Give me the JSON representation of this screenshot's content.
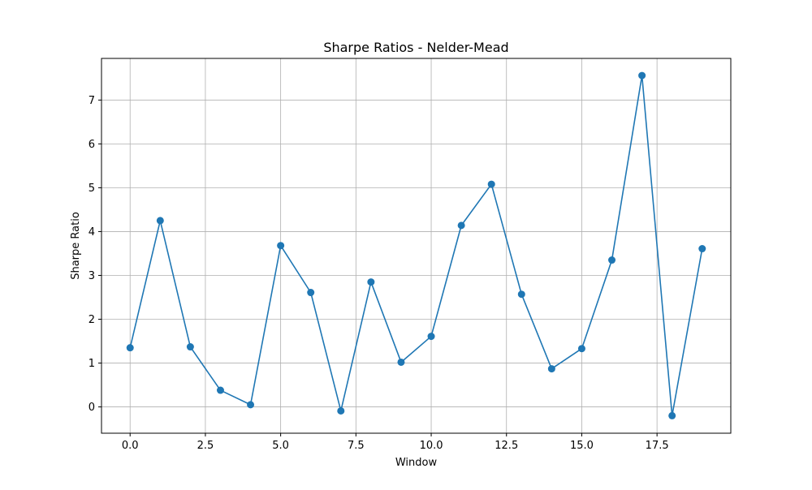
{
  "chart_data": {
    "type": "line",
    "title": "Sharpe Ratios - Nelder-Mead",
    "xlabel": "Window",
    "ylabel": "Sharpe Ratio",
    "xlim": [
      -0.95,
      19.95
    ],
    "ylim": [
      -0.6,
      7.95
    ],
    "xticks": [
      0.0,
      2.5,
      5.0,
      7.5,
      10.0,
      12.5,
      15.0,
      17.5
    ],
    "xtick_labels": [
      "0.0",
      "2.5",
      "5.0",
      "7.5",
      "10.0",
      "12.5",
      "15.0",
      "17.5"
    ],
    "yticks": [
      0,
      1,
      2,
      3,
      4,
      5,
      6,
      7
    ],
    "ytick_labels": [
      "0",
      "1",
      "2",
      "3",
      "4",
      "5",
      "6",
      "7"
    ],
    "grid": true,
    "series": [
      {
        "color": "#1f77b4",
        "marker": "circle",
        "x": [
          0,
          1,
          2,
          3,
          4,
          5,
          6,
          7,
          8,
          9,
          10,
          11,
          12,
          13,
          14,
          15,
          16,
          17,
          18,
          19
        ],
        "y": [
          1.35,
          4.25,
          1.37,
          0.38,
          0.05,
          3.68,
          2.61,
          -0.09,
          2.85,
          1.02,
          1.61,
          4.14,
          5.08,
          2.57,
          0.87,
          1.33,
          3.35,
          7.56,
          -0.2,
          3.61
        ]
      }
    ]
  }
}
